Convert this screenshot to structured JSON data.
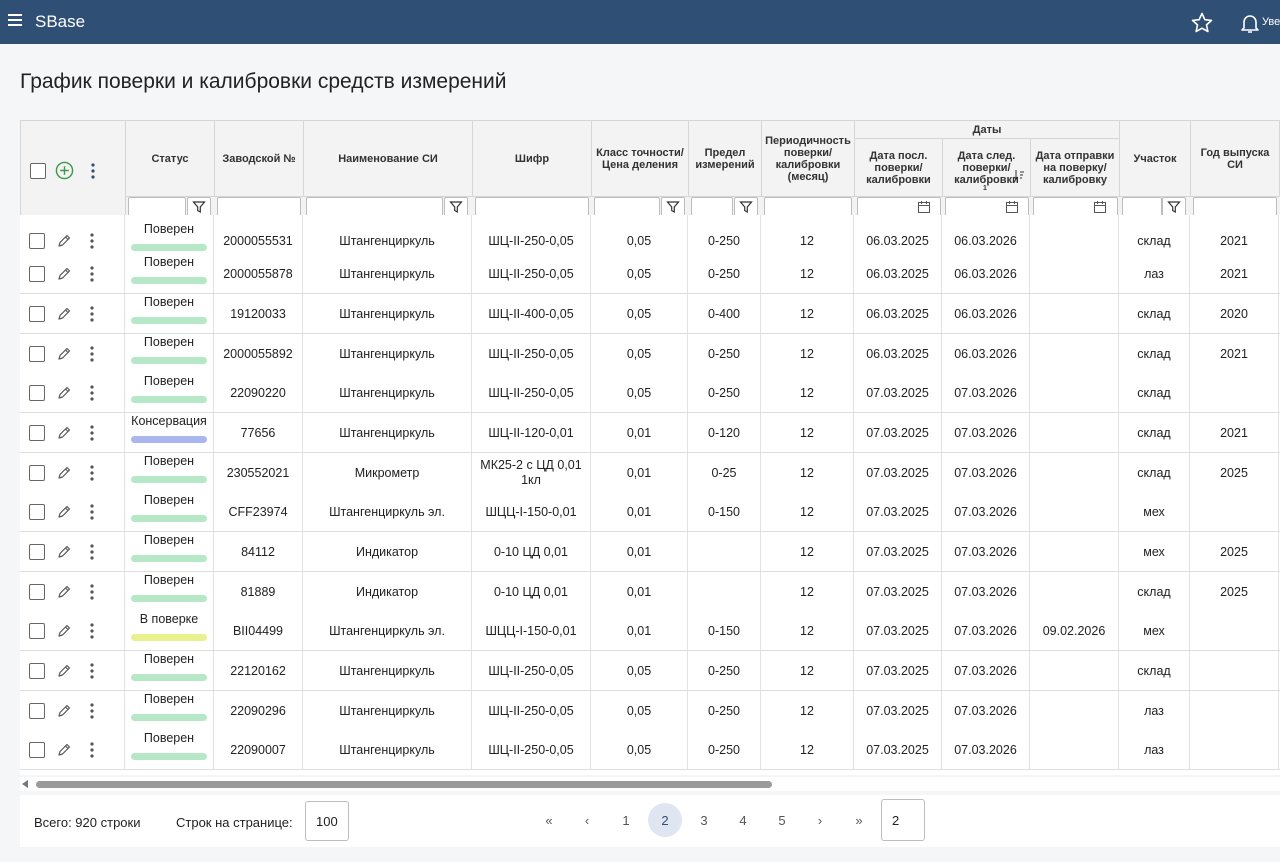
{
  "topbar": {
    "app_title": "SBase",
    "notifications_label": "Уве",
    "icons": [
      "menu-icon",
      "star-icon",
      "bell-icon"
    ]
  },
  "page": {
    "title": "График поверки и калибровки средств измерений"
  },
  "table": {
    "group_header": "Даты",
    "columns": {
      "status": "Статус",
      "serial": "Заводской №",
      "name": "Наименование СИ",
      "code": "Шифр",
      "accuracy": "Класс точности/ Цена деления",
      "range": "Предел измерений",
      "period": "Периодичность поверки/ калибровки (месяц)",
      "last_date": "Дата посл. поверки/ калибровки",
      "next_date": "Дата след. поверки/ калибровки",
      "next_date_sort": "1",
      "sent_date": "Дата отправки на поверку/ калибровку",
      "site": "Участок",
      "year": "Год выпуска СИ"
    },
    "status_colors": {
      "Поверен": "#b6e8c7",
      "Консервация": "#aab6ee",
      "В поверке": "#e9f08e"
    },
    "rows": [
      {
        "status": "Поверен",
        "serial": "2000055531",
        "name": "Штангенциркуль",
        "code": "ШЦ-II-250-0,05",
        "accuracy": "0,05",
        "range": "0-250",
        "period": "12",
        "last": "06.03.2025",
        "next": "06.03.2026",
        "sent": "",
        "site": "склад",
        "year": "2021"
      },
      {
        "status": "Поверен",
        "serial": "2000055878",
        "name": "Штангенциркуль",
        "code": "ШЦ-II-250-0,05",
        "accuracy": "0,05",
        "range": "0-250",
        "period": "12",
        "last": "06.03.2025",
        "next": "06.03.2026",
        "sent": "",
        "site": "лаз",
        "year": "2021"
      },
      {
        "status": "Поверен",
        "serial": "19120033",
        "name": "Штангенциркуль",
        "code": "ШЦ-II-400-0,05",
        "accuracy": "0,05",
        "range": "0-400",
        "period": "12",
        "last": "06.03.2025",
        "next": "06.03.2026",
        "sent": "",
        "site": "склад",
        "year": "2020"
      },
      {
        "status": "Поверен",
        "serial": "2000055892",
        "name": "Штангенциркуль",
        "code": "ШЦ-II-250-0,05",
        "accuracy": "0,05",
        "range": "0-250",
        "period": "12",
        "last": "06.03.2025",
        "next": "06.03.2026",
        "sent": "",
        "site": "склад",
        "year": "2021"
      },
      {
        "status": "Поверен",
        "serial": "22090220",
        "name": "Штангенциркуль",
        "code": "ШЦ-II-250-0,05",
        "accuracy": "0,05",
        "range": "0-250",
        "period": "12",
        "last": "07.03.2025",
        "next": "07.03.2026",
        "sent": "",
        "site": "склад",
        "year": ""
      },
      {
        "status": "Консервация",
        "serial": "77656",
        "name": "Штангенциркуль",
        "code": "ШЦ-II-120-0,01",
        "accuracy": "0,01",
        "range": "0-120",
        "period": "12",
        "last": "07.03.2025",
        "next": "07.03.2026",
        "sent": "",
        "site": "склад",
        "year": "2021"
      },
      {
        "status": "Поверен",
        "serial": "230552021",
        "name": "Микрометр",
        "code": "МК25-2 с ЦД 0,01 1кл",
        "accuracy": "0,01",
        "range": "0-25",
        "period": "12",
        "last": "07.03.2025",
        "next": "07.03.2026",
        "sent": "",
        "site": "склад",
        "year": "2025"
      },
      {
        "status": "Поверен",
        "serial": "CFF23974",
        "name": "Штангенциркуль эл.",
        "code": "ШЦЦ-I-150-0,01",
        "accuracy": "0,01",
        "range": "0-150",
        "period": "12",
        "last": "07.03.2025",
        "next": "07.03.2026",
        "sent": "",
        "site": "мех",
        "year": ""
      },
      {
        "status": "Поверен",
        "serial": "84112",
        "name": "Индикатор",
        "code": "0-10 ЦД 0,01",
        "accuracy": "0,01",
        "range": "",
        "period": "12",
        "last": "07.03.2025",
        "next": "07.03.2026",
        "sent": "",
        "site": "мех",
        "year": "2025"
      },
      {
        "status": "Поверен",
        "serial": "81889",
        "name": "Индикатор",
        "code": "0-10 ЦД 0,01",
        "accuracy": "0,01",
        "range": "",
        "period": "12",
        "last": "07.03.2025",
        "next": "07.03.2026",
        "sent": "",
        "site": "склад",
        "year": "2025"
      },
      {
        "status": "В поверке",
        "serial": "BII04499",
        "name": "Штангенциркуль эл.",
        "code": "ШЦЦ-I-150-0,01",
        "accuracy": "0,01",
        "range": "0-150",
        "period": "12",
        "last": "07.03.2025",
        "next": "07.03.2026",
        "sent": "09.02.2026",
        "site": "мех",
        "year": ""
      },
      {
        "status": "Поверен",
        "serial": "22120162",
        "name": "Штангенциркуль",
        "code": "ШЦ-II-250-0,05",
        "accuracy": "0,05",
        "range": "0-250",
        "period": "12",
        "last": "07.03.2025",
        "next": "07.03.2026",
        "sent": "",
        "site": "склад",
        "year": ""
      },
      {
        "status": "Поверен",
        "serial": "22090296",
        "name": "Штангенциркуль",
        "code": "ШЦ-II-250-0,05",
        "accuracy": "0,05",
        "range": "0-250",
        "period": "12",
        "last": "07.03.2025",
        "next": "07.03.2026",
        "sent": "",
        "site": "лаз",
        "year": ""
      },
      {
        "status": "Поверен",
        "serial": "22090007",
        "name": "Штангенциркуль",
        "code": "ШЦ-II-250-0,05",
        "accuracy": "0,05",
        "range": "0-250",
        "period": "12",
        "last": "07.03.2025",
        "next": "07.03.2026",
        "sent": "",
        "site": "лаз",
        "year": ""
      }
    ]
  },
  "footer": {
    "total": "Всего: 920 строки",
    "rows_per_page_label": "Строк на странице:",
    "rows_per_page_value": "100",
    "pages": [
      "1",
      "2",
      "3",
      "4",
      "5"
    ],
    "current_page": "2",
    "goto_value": "2"
  }
}
